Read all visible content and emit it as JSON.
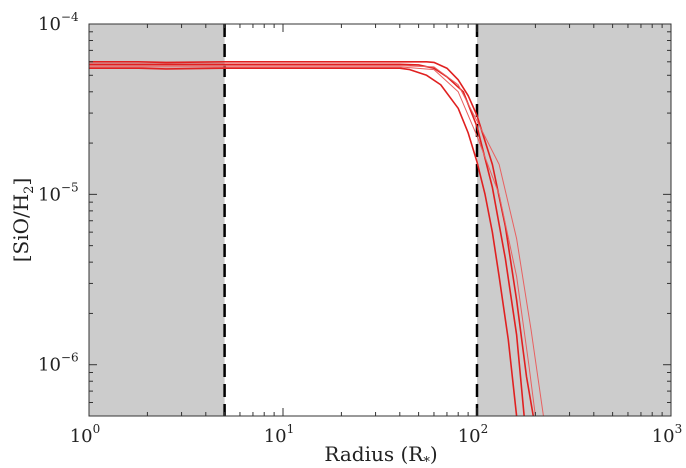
{
  "chart_data": {
    "type": "line",
    "title": "",
    "xlabel": "Radius (R",
    "xlabel_subscript": "*",
    "xlabel_close": ")",
    "ylabel": "[SiO/H",
    "ylabel_subscript": "2",
    "ylabel_close": "]",
    "x_scale": "log",
    "y_scale": "log",
    "xlim": [
      1,
      1000
    ],
    "ylim": [
      5e-07,
      0.0001
    ],
    "x_ticks": [
      {
        "value": 1,
        "base": "10",
        "exp": "0"
      },
      {
        "value": 10,
        "base": "10",
        "exp": "1"
      },
      {
        "value": 100,
        "base": "10",
        "exp": "2"
      },
      {
        "value": 1000,
        "base": "10",
        "exp": "3"
      }
    ],
    "y_ticks": [
      {
        "value": 1e-06,
        "base": "10",
        "exp": "−6"
      },
      {
        "value": 1e-05,
        "base": "10",
        "exp": "−5"
      },
      {
        "value": 0.0001,
        "base": "10",
        "exp": "−4"
      }
    ],
    "grid": false,
    "shaded_regions": [
      {
        "x0": 1,
        "x1": 5,
        "color": "#cccccc"
      },
      {
        "x0": 100,
        "x1": 1000,
        "color": "#cccccc"
      }
    ],
    "vertical_lines": [
      {
        "x": 5,
        "style": "dashed",
        "color": "#000000"
      },
      {
        "x": 100,
        "style": "dashed",
        "color": "#000000"
      }
    ],
    "series": [
      {
        "color": "#e02020",
        "width": 1.6,
        "points": [
          [
            1,
            6e-05
          ],
          [
            1.8,
            6e-05
          ],
          [
            2.5,
            5.95e-05
          ],
          [
            5,
            6e-05
          ],
          [
            20,
            6e-05
          ],
          [
            40,
            6e-05
          ],
          [
            55,
            6e-05
          ],
          [
            60,
            5.95e-05
          ],
          [
            70,
            5.5e-05
          ],
          [
            80,
            4.7e-05
          ],
          [
            90,
            3.8e-05
          ],
          [
            100,
            2.9e-05
          ],
          [
            120,
            1.5e-05
          ],
          [
            140,
            6.5e-06
          ],
          [
            160,
            2.4e-06
          ],
          [
            180,
            8.5e-07
          ],
          [
            195,
            5e-07
          ]
        ]
      },
      {
        "color": "#e02020",
        "width": 1.6,
        "points": [
          [
            1,
            5.5e-05
          ],
          [
            1.8,
            5.5e-05
          ],
          [
            2.5,
            5.45e-05
          ],
          [
            5,
            5.5e-05
          ],
          [
            20,
            5.5e-05
          ],
          [
            40,
            5.5e-05
          ],
          [
            45,
            5.4e-05
          ],
          [
            55,
            5e-05
          ],
          [
            65,
            4.4e-05
          ],
          [
            80,
            3.2e-05
          ],
          [
            90,
            2.3e-05
          ],
          [
            100,
            1.55e-05
          ],
          [
            110,
            1e-05
          ],
          [
            120,
            6e-06
          ],
          [
            130,
            3.3e-06
          ],
          [
            145,
            1.4e-06
          ],
          [
            160,
            5e-07
          ]
        ]
      },
      {
        "color": "#e02020",
        "width": 1.6,
        "points": [
          [
            1,
            5.8e-05
          ],
          [
            5,
            5.8e-05
          ],
          [
            20,
            5.8e-05
          ],
          [
            40,
            5.8e-05
          ],
          [
            50,
            5.75e-05
          ],
          [
            60,
            5.5e-05
          ],
          [
            70,
            4.9e-05
          ],
          [
            85,
            4e-05
          ],
          [
            100,
            2.5e-05
          ],
          [
            120,
            1.1e-05
          ],
          [
            140,
            4.2e-06
          ],
          [
            160,
            1.5e-06
          ],
          [
            175,
            5e-07
          ]
        ]
      },
      {
        "color": "#e86060",
        "width": 1.0,
        "points": [
          [
            1,
            5.7e-05
          ],
          [
            5,
            5.7e-05
          ],
          [
            40,
            5.7e-05
          ],
          [
            60,
            5.6e-05
          ],
          [
            80,
            4.4e-05
          ],
          [
            100,
            2.7e-05
          ],
          [
            130,
            1.5e-05
          ],
          [
            160,
            5.5e-06
          ],
          [
            190,
            1.6e-06
          ],
          [
            220,
            5e-07
          ]
        ]
      },
      {
        "color": "#e86060",
        "width": 1.0,
        "points": [
          [
            1,
            5.6e-05
          ],
          [
            5,
            5.6e-05
          ],
          [
            40,
            5.6e-05
          ],
          [
            60,
            5.4e-05
          ],
          [
            80,
            4e-05
          ],
          [
            100,
            2.2e-05
          ],
          [
            130,
            1e-05
          ],
          [
            160,
            3.3e-06
          ],
          [
            185,
            1e-06
          ],
          [
            200,
            5e-07
          ]
        ]
      }
    ]
  }
}
